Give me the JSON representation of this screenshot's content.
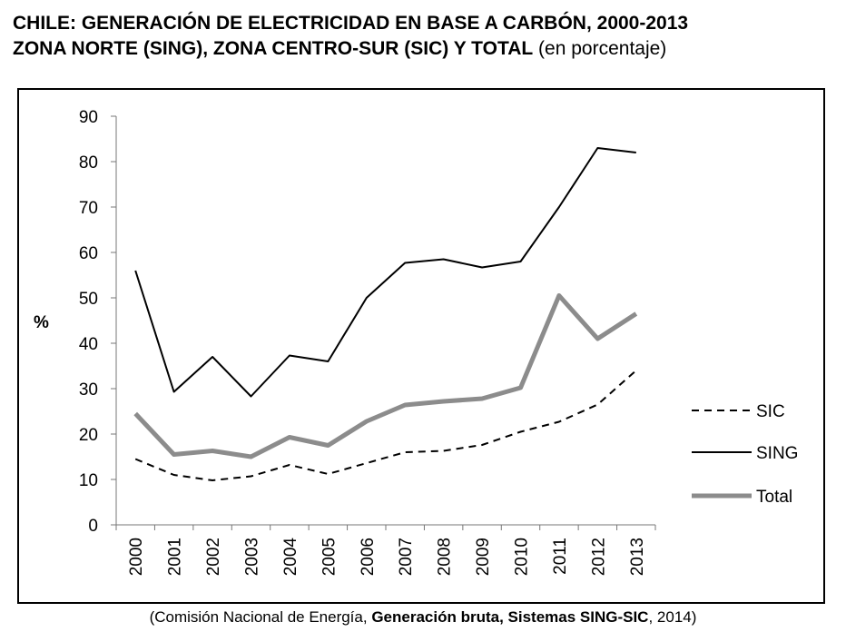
{
  "title": {
    "line1": "CHILE: GENERACIÓN DE ELECTRICIDAD EN BASE A CARBÓN, 2000-2013",
    "line2_bold": "ZONA NORTE (SING), ZONA CENTRO-SUR (SIC) Y TOTAL",
    "line2_normal": " (en porcentaje)"
  },
  "source": {
    "prefix": "(Comisión Nacional de Energía, ",
    "bold": "Generación bruta, Sistemas SING-SIC",
    "suffix": ", 2014)"
  },
  "chart_data": {
    "type": "line",
    "x": [
      "2000",
      "2001",
      "2002",
      "2003",
      "2004",
      "2005",
      "2006",
      "2007",
      "2008",
      "2009",
      "2010",
      "2011",
      "2012",
      "2013"
    ],
    "ylabel": "%",
    "ylim": [
      0,
      90
    ],
    "yticks": [
      0,
      10,
      20,
      30,
      40,
      50,
      60,
      70,
      80,
      90
    ],
    "grid": false,
    "legend": "right",
    "series": [
      {
        "name": "SIC",
        "style": "dashed",
        "color": "#000000",
        "values": [
          14.5,
          11,
          9.8,
          10.7,
          13.2,
          11.2,
          13.6,
          16,
          16.3,
          17.6,
          20.5,
          22.7,
          26.5,
          34
        ]
      },
      {
        "name": "SING",
        "style": "solid",
        "color": "#000000",
        "values": [
          56,
          29.3,
          37,
          28.3,
          37.3,
          36,
          50,
          57.7,
          58.5,
          56.7,
          58,
          70,
          83,
          82
        ]
      },
      {
        "name": "Total",
        "style": "thick",
        "color": "#8c8c8c",
        "values": [
          24.5,
          15.5,
          16.3,
          15,
          19.3,
          17.5,
          22.8,
          26.4,
          27.2,
          27.8,
          30.2,
          50.5,
          41,
          46.5
        ]
      }
    ]
  }
}
